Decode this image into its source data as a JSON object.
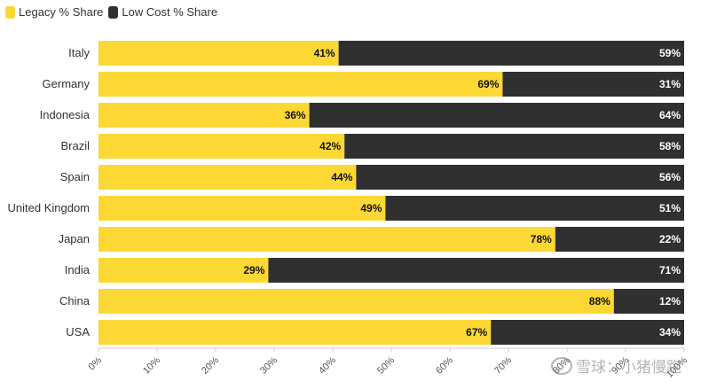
{
  "legend": [
    {
      "label": "Legacy % Share",
      "color": "#FDD835"
    },
    {
      "label": "Low Cost % Share",
      "color": "#303030"
    }
  ],
  "watermark": {
    "text": "雪球：小猪慢跑"
  },
  "chart_data": {
    "type": "bar",
    "orientation": "horizontal",
    "stacked": true,
    "categories": [
      "Italy",
      "Germany",
      "Indonesia",
      "Brazil",
      "Spain",
      "United Kingdom",
      "Japan",
      "India",
      "China",
      "USA"
    ],
    "series": [
      {
        "name": "Legacy % Share",
        "color": "#FDD835",
        "values": [
          41,
          69,
          36,
          42,
          44,
          49,
          78,
          29,
          88,
          67
        ],
        "labels": [
          "41%",
          "69%",
          "36%",
          "42%",
          "44%",
          "49%",
          "78%",
          "29%",
          "88%",
          "67%"
        ]
      },
      {
        "name": "Low Cost % Share",
        "color": "#303030",
        "values": [
          59,
          31,
          64,
          58,
          56,
          51,
          22,
          71,
          12,
          34
        ],
        "labels": [
          "59%",
          "31%",
          "64%",
          "58%",
          "56%",
          "51%",
          "22%",
          "71%",
          "12%",
          "34%"
        ]
      }
    ],
    "xlim": [
      0,
      100
    ],
    "xticks": [
      "0%",
      "10%",
      "20%",
      "30%",
      "40%",
      "50%",
      "60%",
      "70%",
      "80%",
      "90%",
      "100%"
    ],
    "legend_position": "top-left",
    "grid": false
  }
}
